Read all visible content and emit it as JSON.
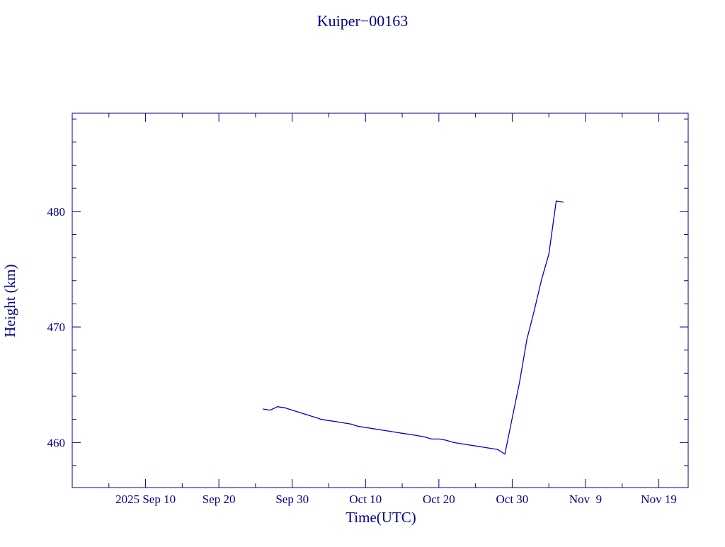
{
  "chart_data": {
    "type": "line",
    "title": "Kuiper−00163",
    "x_label": "Time(UTC)",
    "y_label": "Height (km)",
    "x": [
      "2025-09-26",
      "2025-09-27",
      "2025-09-28",
      "2025-09-29",
      "2025-09-30",
      "2025-10-01",
      "2025-10-02",
      "2025-10-03",
      "2025-10-04",
      "2025-10-05",
      "2025-10-06",
      "2025-10-07",
      "2025-10-08",
      "2025-10-09",
      "2025-10-10",
      "2025-10-11",
      "2025-10-12",
      "2025-10-13",
      "2025-10-14",
      "2025-10-15",
      "2025-10-16",
      "2025-10-17",
      "2025-10-18",
      "2025-10-19",
      "2025-10-20",
      "2025-10-21",
      "2025-10-22",
      "2025-10-23",
      "2025-10-24",
      "2025-10-25",
      "2025-10-26",
      "2025-10-27",
      "2025-10-28",
      "2025-10-29",
      "2025-10-30",
      "2025-10-31",
      "2025-11-01",
      "2025-11-02",
      "2025-11-03",
      "2025-11-04",
      "2025-11-05",
      "2025-11-06"
    ],
    "series": [
      {
        "name": "Height",
        "color": "#0000cc",
        "values": [
          462.9,
          462.8,
          463.1,
          463.0,
          462.8,
          462.6,
          462.4,
          462.2,
          462.0,
          461.9,
          461.8,
          461.7,
          461.6,
          461.4,
          461.3,
          461.2,
          461.1,
          461.0,
          460.9,
          460.8,
          460.7,
          460.6,
          460.5,
          460.3,
          460.3,
          460.2,
          460.0,
          459.9,
          459.8,
          459.7,
          459.6,
          459.5,
          459.4,
          459.0,
          462.1,
          465.2,
          468.9,
          471.4,
          474.1,
          476.3,
          480.9,
          480.8
        ]
      }
    ],
    "xlim": [
      "2025-08-31",
      "2025-11-23"
    ],
    "xticks": [
      {
        "value": "2025-09-10",
        "label": "2025 Sep 10"
      },
      {
        "value": "2025-09-20",
        "label": "Sep 20"
      },
      {
        "value": "2025-09-30",
        "label": "Sep 30"
      },
      {
        "value": "2025-10-10",
        "label": "Oct 10"
      },
      {
        "value": "2025-10-20",
        "label": "Oct 20"
      },
      {
        "value": "2025-10-30",
        "label": "Oct 30"
      },
      {
        "value": "2025-11-09",
        "label": "Nov  9"
      },
      {
        "value": "2025-11-19",
        "label": "Nov 19"
      }
    ],
    "xticks_minor": [
      "2025-09-05",
      "2025-09-15",
      "2025-09-25",
      "2025-10-05",
      "2025-10-15",
      "2025-10-25",
      "2025-11-04",
      "2025-11-14"
    ],
    "ylim": [
      456.1,
      488.5
    ],
    "yticks": [
      460,
      470,
      480
    ],
    "yticks_minor": [
      458,
      462,
      464,
      466,
      468,
      472,
      474,
      476,
      478,
      482,
      484,
      486,
      488
    ],
    "grid": false
  }
}
